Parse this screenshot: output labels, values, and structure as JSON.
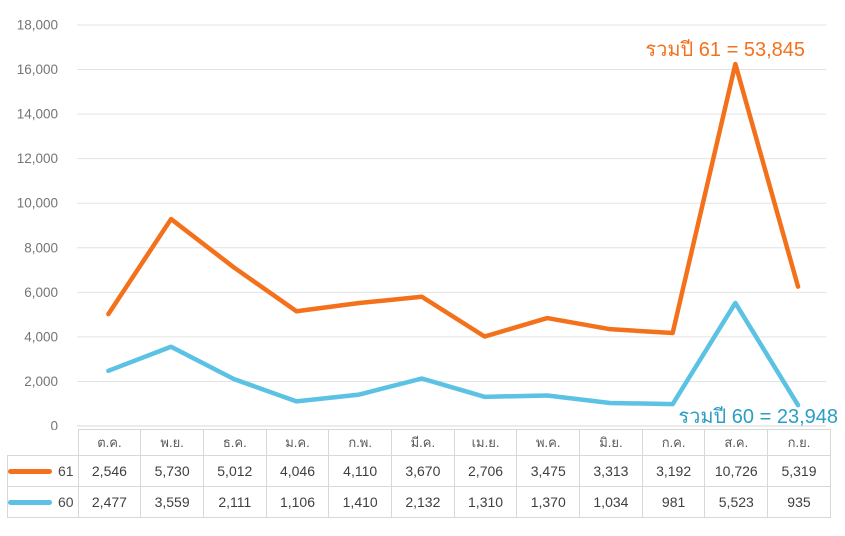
{
  "chart_data": {
    "type": "line",
    "stacked": true,
    "title": "",
    "xlabel": "",
    "ylabel": "",
    "categories": [
      "ต.ค.",
      "พ.ย.",
      "ธ.ค.",
      "ม.ค.",
      "ก.พ.",
      "มี.ค.",
      "เม.ย.",
      "พ.ค.",
      "มิ.ย.",
      "ก.ค.",
      "ส.ค.",
      "ก.ย."
    ],
    "series": [
      {
        "name": "61",
        "color": "#f4711c",
        "values": [
          2546,
          5730,
          5012,
          4046,
          4110,
          3670,
          2706,
          3475,
          3313,
          3192,
          10726,
          5319
        ],
        "total": 53845
      },
      {
        "name": "60",
        "color": "#5bc2e4",
        "values": [
          2477,
          3559,
          2111,
          1106,
          1410,
          2132,
          1310,
          1370,
          1034,
          981,
          5523,
          935
        ],
        "total": 23948
      }
    ],
    "ylim": [
      0,
      18000
    ],
    "y_tick_step": 2000,
    "y_tick_labels": [
      "0",
      "2,000",
      "4,000",
      "6,000",
      "8,000",
      "10,000",
      "12,000",
      "14,000",
      "16,000",
      "18,000"
    ],
    "grid": true,
    "legend_position": "table-left",
    "annotations": [
      {
        "text": "รวมปี 61 = 53,845",
        "color": "#f4711c"
      },
      {
        "text": "รวมปี 60 = 23,948",
        "color": "#2b9ec5"
      }
    ]
  },
  "colors": {
    "gridline": "#e3e3e3",
    "zero_line": "#d9d9d9",
    "axis_label": "#757575",
    "table_border": "#d8d8d8"
  }
}
